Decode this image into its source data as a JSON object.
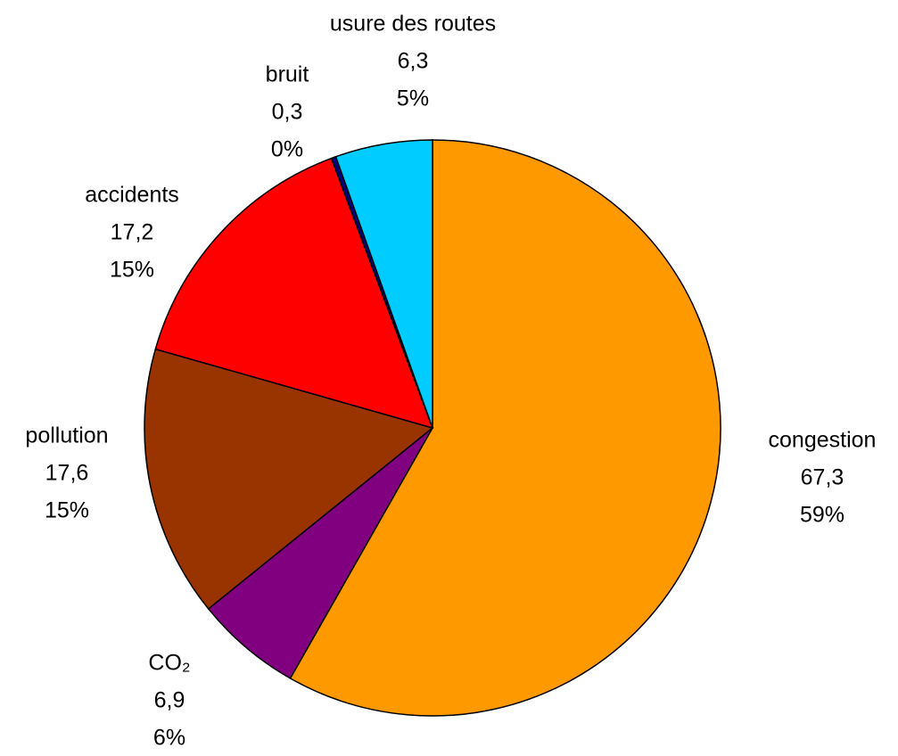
{
  "chart_data": {
    "type": "pie",
    "categories": [
      "congestion",
      "CO₂",
      "pollution",
      "accidents",
      "bruit",
      "usure des routes"
    ],
    "values": [
      67.3,
      6.9,
      17.6,
      17.2,
      0.3,
      6.3
    ],
    "value_labels": [
      "67,3",
      "6,9",
      "17,6",
      "17,2",
      "0,3",
      "6,3"
    ],
    "percent_labels": [
      "59%",
      "6%",
      "15%",
      "15%",
      "0%",
      "5%"
    ],
    "colors": [
      "#FF9900",
      "#800080",
      "#993300",
      "#FF0000",
      "#000080",
      "#00CCFF"
    ]
  }
}
